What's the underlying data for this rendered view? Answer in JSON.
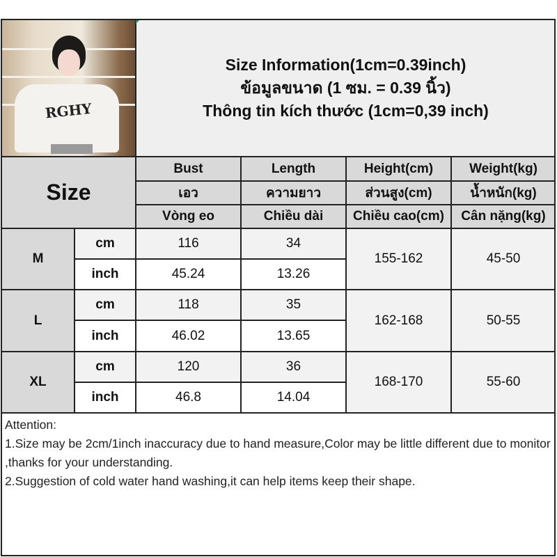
{
  "title": {
    "line1": "Size Information(1cm=0.39inch)",
    "line2": "ข้อมูลขนาด (1 ซม. = 0.39 นิ้ว)",
    "line3": "Thông tin kích thước (1cm=0,39 inch)"
  },
  "photo": {
    "shirt_print": "RGHY"
  },
  "header": {
    "size_label": "Size",
    "columns": [
      {
        "en": "Bust",
        "th": "เอว",
        "vi": "Vòng eo"
      },
      {
        "en": "Length",
        "th": "ความยาว",
        "vi": "Chiều dài"
      },
      {
        "en": "Height(cm)",
        "th": "ส่วนสูง(cm)",
        "vi": "Chiều cao(cm)"
      },
      {
        "en": "Weight(kg)",
        "th": "น้ำหนัก(kg)",
        "vi": "Cân nặng(kg)"
      }
    ]
  },
  "rows": [
    {
      "size": "M",
      "cm_label": "cm",
      "inch_label": "inch",
      "bust_cm": "116",
      "length_cm": "34",
      "bust_inch": "45.24",
      "length_inch": "13.26",
      "height": "155-162",
      "weight": "45-50"
    },
    {
      "size": "L",
      "cm_label": "cm",
      "inch_label": "inch",
      "bust_cm": "118",
      "length_cm": "35",
      "bust_inch": "46.02",
      "length_inch": "13.65",
      "height": "162-168",
      "weight": "50-55"
    },
    {
      "size": "XL",
      "cm_label": "cm",
      "inch_label": "inch",
      "bust_cm": "120",
      "length_cm": "36",
      "bust_inch": "46.8",
      "length_inch": "14.04",
      "height": "168-170",
      "weight": "55-60"
    }
  ],
  "attention": {
    "heading": "Attention:",
    "note1": "1.Size may be 2cm/1inch inaccuracy due to hand measure,Color may be little different due to monitor ,thanks for your understanding.",
    "note2": "2.Suggestion of cold water hand washing,it can help items keep their shape."
  },
  "colors": {
    "header_gray": "#d9d9d9",
    "light_gray": "#f2f2f2",
    "title_bg": "#efefef",
    "border": "#222222"
  }
}
